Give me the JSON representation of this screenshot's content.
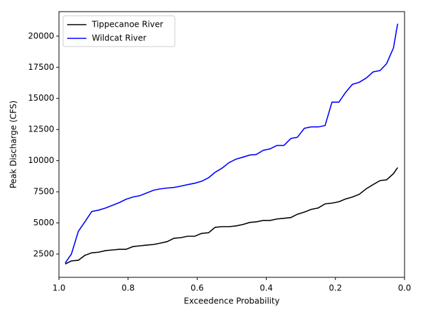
{
  "chart_data": {
    "type": "line",
    "xlabel": "Exceedence Probability",
    "ylabel": "Peak Discharge (CFS)",
    "x": [
      0.982,
      0.964,
      0.944,
      0.925,
      0.905,
      0.885,
      0.865,
      0.845,
      0.825,
      0.806,
      0.786,
      0.766,
      0.746,
      0.726,
      0.706,
      0.687,
      0.667,
      0.647,
      0.627,
      0.607,
      0.587,
      0.567,
      0.548,
      0.528,
      0.508,
      0.488,
      0.468,
      0.448,
      0.429,
      0.409,
      0.389,
      0.369,
      0.349,
      0.329,
      0.31,
      0.29,
      0.27,
      0.25,
      0.23,
      0.21,
      0.19,
      0.171,
      0.151,
      0.131,
      0.111,
      0.091,
      0.071,
      0.052,
      0.032,
      0.02
    ],
    "series": [
      {
        "name": "Tippecanoe River",
        "color": "#000000",
        "values": [
          1700,
          1950,
          2000,
          2400,
          2600,
          2650,
          2780,
          2830,
          2880,
          2880,
          3100,
          3160,
          3220,
          3270,
          3380,
          3500,
          3770,
          3820,
          3930,
          3930,
          4160,
          4210,
          4650,
          4700,
          4700,
          4760,
          4870,
          5040,
          5090,
          5200,
          5200,
          5320,
          5370,
          5430,
          5700,
          5870,
          6090,
          6200,
          6530,
          6590,
          6700,
          6920,
          7080,
          7300,
          7740,
          8080,
          8400,
          8460,
          8960,
          9450
        ]
      },
      {
        "name": "Wildcat River",
        "color": "#0000ff",
        "values": [
          1780,
          2500,
          4320,
          5090,
          5920,
          6030,
          6200,
          6420,
          6640,
          6900,
          7080,
          7190,
          7410,
          7630,
          7740,
          7800,
          7850,
          7960,
          8080,
          8190,
          8350,
          8630,
          9070,
          9400,
          9840,
          10120,
          10280,
          10450,
          10500,
          10830,
          10950,
          11220,
          11220,
          11780,
          11880,
          12600,
          12710,
          12710,
          12820,
          14700,
          14700,
          15470,
          16130,
          16300,
          16630,
          17130,
          17240,
          17790,
          19060,
          21000
        ]
      }
    ],
    "xlim": [
      1.0,
      0.0
    ],
    "xticks": [
      {
        "value": 1.0,
        "label": "1.0"
      },
      0.8,
      0.6,
      0.4,
      0.2,
      {
        "value": 0,
        "label": "0.0"
      }
    ],
    "ylim": [
      630,
      21970
    ],
    "yticks": [
      2500,
      5000,
      7500,
      10000,
      12500,
      15000,
      17500,
      20000
    ],
    "legend": "upper left"
  }
}
